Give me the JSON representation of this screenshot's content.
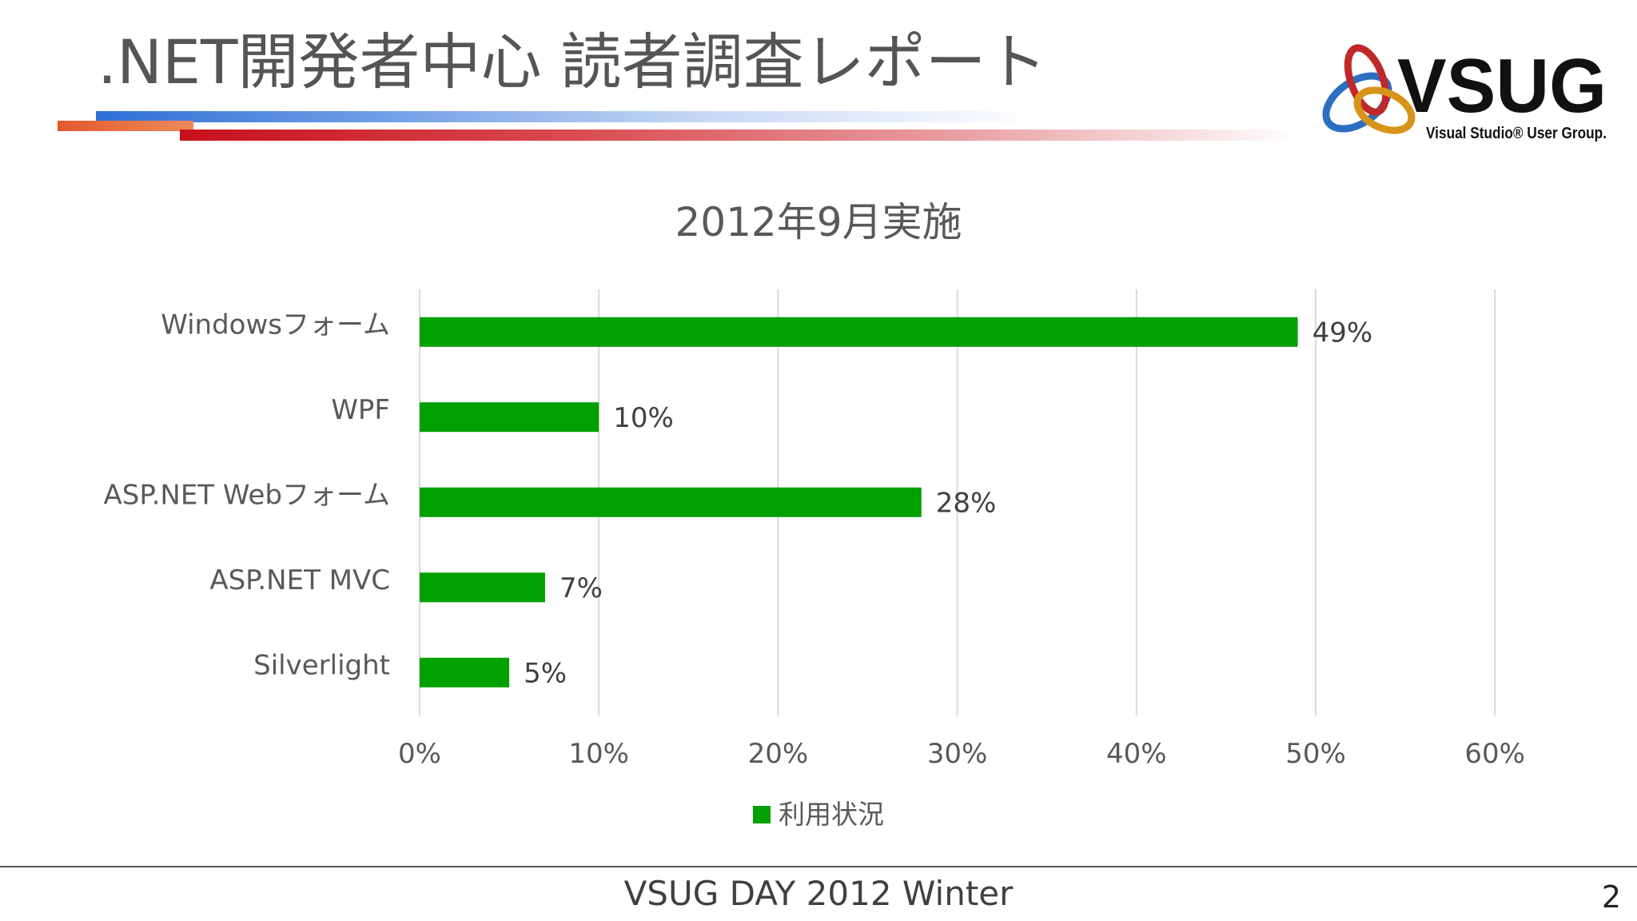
{
  "slide": {
    "title": ".NET開発者中心 読者調査レポート",
    "footer": "VSUG DAY 2012 Winter",
    "page_number": "2",
    "logo": {
      "text": "VSUG",
      "subtitle": "Visual Studio® User Group."
    }
  },
  "chart_data": {
    "type": "bar",
    "orientation": "horizontal",
    "title": "2012年9月実施",
    "categories": [
      "Windowsフォーム",
      "WPF",
      "ASP.NET Webフォーム",
      "ASP.NET MVC",
      "Silverlight"
    ],
    "series": [
      {
        "name": "利用状況",
        "values": [
          49,
          10,
          28,
          7,
          5
        ],
        "color": "#00a000"
      }
    ],
    "data_labels": [
      "49%",
      "10%",
      "28%",
      "7%",
      "5%"
    ],
    "x_ticks": [
      "0%",
      "10%",
      "20%",
      "30%",
      "40%",
      "50%",
      "60%"
    ],
    "xlim": [
      0,
      60
    ],
    "grid": true,
    "legend_position": "bottom"
  }
}
